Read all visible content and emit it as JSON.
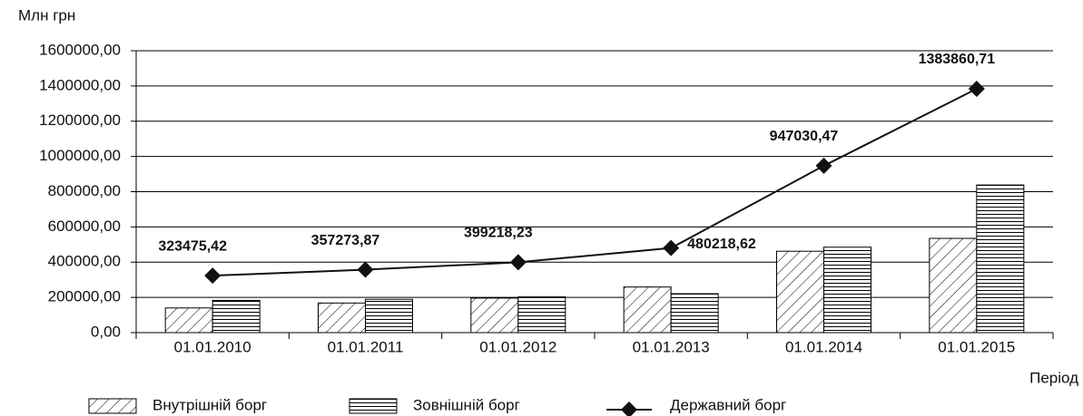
{
  "chart_data": {
    "type": "bar",
    "y_label": "Млн грн",
    "x_label": "Період",
    "categories": [
      "01.01.2010",
      "01.01.2011",
      "01.01.2012",
      "01.01.2013",
      "01.01.2014",
      "01.01.2015"
    ],
    "series": [
      {
        "name": "Внутрішній борг",
        "type": "bar",
        "pattern": "diagonal",
        "color": "#000000",
        "values": [
          140000,
          168000,
          196000,
          259000,
          462000,
          535000
        ]
      },
      {
        "name": "Зовнішній борг",
        "type": "bar",
        "pattern": "horizontal",
        "color": "#000000",
        "values": [
          183000,
          189000,
          203000,
          221000,
          485000,
          838000
        ]
      },
      {
        "name": "Державний борг",
        "type": "line",
        "color": "#111111",
        "values": [
          323475.42,
          357273.87,
          399218.23,
          480218.62,
          947030.47,
          1383860.71
        ],
        "value_labels": [
          "323475,42",
          "357273,87",
          "399218,23",
          "480218,62",
          "947030,47",
          "1383860,71"
        ]
      }
    ],
    "ylim": [
      0,
      1600000
    ],
    "yticks": [
      {
        "value": 0,
        "label": "0,00"
      },
      {
        "value": 200000,
        "label": "200000,00"
      },
      {
        "value": 400000,
        "label": "400000,00"
      },
      {
        "value": 600000,
        "label": "600000,00"
      },
      {
        "value": 800000,
        "label": "800000,00"
      },
      {
        "value": 1000000,
        "label": "1000000,00"
      },
      {
        "value": 1200000,
        "label": "1200000,00"
      },
      {
        "value": 1400000,
        "label": "1400000,00"
      },
      {
        "value": 1600000,
        "label": "1600000,00"
      }
    ],
    "grid": true
  }
}
